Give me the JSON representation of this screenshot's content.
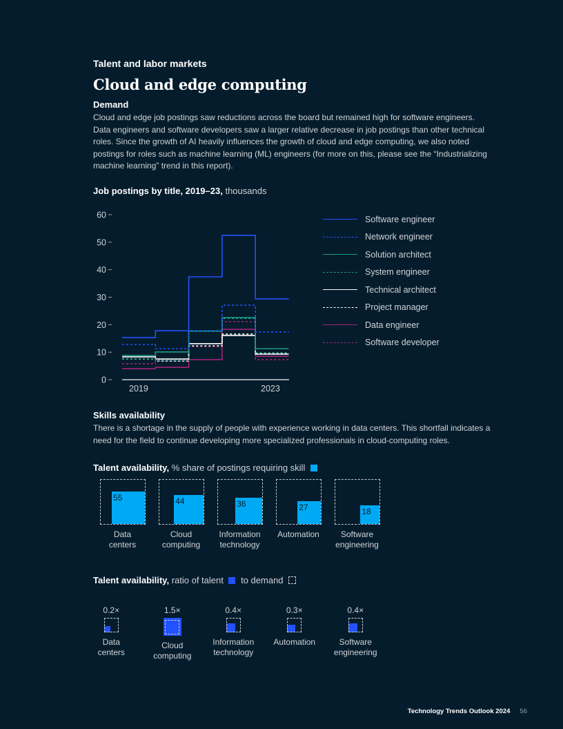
{
  "header": {
    "section": "Talent and labor markets",
    "title": "Cloud and edge computing"
  },
  "demand": {
    "heading": "Demand",
    "body": "Cloud and edge job postings saw reductions across the board but remained high for software engineers. Data engineers and software developers saw a larger relative decrease in job postings than other technical roles. Since the growth of AI heavily influences the growth of cloud and edge computing, we also noted postings for roles such as machine learning (ML) engineers (for more on this, please see the “Industrializing machine learning” trend in this report)."
  },
  "skills": {
    "heading": "Skills availability",
    "body": "There is a shortage in the supply of people with experience working in data centers. This shortfall indicates a need for the field to continue developing more specialized professionals in cloud-computing roles."
  },
  "colors": {
    "background": "#051c2c",
    "share_fill": "#00a9f4",
    "talent_fill": "#2251ff"
  },
  "chart_data": [
    {
      "type": "line",
      "step": true,
      "title": "Job postings by title, 2019–23,",
      "title_unit": "thousands",
      "xlabel": "",
      "ylabel": "",
      "x": [
        2019,
        2020,
        2021,
        2022,
        2023
      ],
      "x_tick_labels": [
        "2019",
        "2023"
      ],
      "ylim": [
        0,
        60
      ],
      "y_ticks": [
        0,
        10,
        20,
        30,
        40,
        50,
        60
      ],
      "grid": false,
      "legend_position": "right",
      "series": [
        {
          "name": "Software engineer",
          "color": "#2251ff",
          "dash": "solid",
          "values": [
            15.3,
            17.8,
            37.4,
            52.5,
            29.4
          ]
        },
        {
          "name": "Network engineer",
          "color": "#2251ff",
          "dash": "dotted",
          "values": [
            12.8,
            11.3,
            17.8,
            27.1,
            17.3
          ]
        },
        {
          "name": "Solution architect",
          "color": "#1f9a8a",
          "dash": "solid",
          "values": [
            8.8,
            10.1,
            17.7,
            22.6,
            11.3
          ]
        },
        {
          "name": "System engineer",
          "color": "#1f9a8a",
          "dash": "dotted",
          "values": [
            7.5,
            7.0,
            17.6,
            22.3,
            9.8
          ]
        },
        {
          "name": "Technical architect",
          "color": "#ffffff",
          "dash": "solid",
          "values": [
            8.3,
            7.5,
            13.1,
            16.1,
            9.3
          ]
        },
        {
          "name": "Project manager",
          "color": "#ffffff",
          "dash": "dotted",
          "values": [
            7.5,
            6.8,
            12.3,
            16.6,
            9.5
          ]
        },
        {
          "name": "Data engineer",
          "color": "#a4237a",
          "dash": "solid",
          "values": [
            4.0,
            4.5,
            7.3,
            18.3,
            8.5
          ]
        },
        {
          "name": "Software developer",
          "color": "#a4237a",
          "dash": "dotted",
          "values": [
            5.8,
            6.8,
            12.0,
            21.1,
            7.3
          ]
        }
      ]
    },
    {
      "type": "bar",
      "title": "Talent availability,",
      "title_unit": "% share of postings requiring skill",
      "categories": [
        "Data centers",
        "Cloud computing",
        "Information technology",
        "Automation",
        "Software engineering"
      ],
      "category_lines": [
        [
          "Data",
          "centers"
        ],
        [
          "Cloud",
          "computing"
        ],
        [
          "Information",
          "technology"
        ],
        [
          "Automation"
        ],
        [
          "Software",
          "engineering"
        ]
      ],
      "values": [
        55,
        44,
        36,
        27,
        18
      ],
      "ylim": [
        0,
        100
      ]
    },
    {
      "type": "bar",
      "title": "Talent availability,",
      "title_unit_a": "ratio of talent",
      "title_unit_b": "to demand",
      "categories": [
        "Data centers",
        "Cloud computing",
        "Information technology",
        "Automation",
        "Software engineering"
      ],
      "category_lines": [
        [
          "Data",
          "centers"
        ],
        [
          "Cloud",
          "computing"
        ],
        [
          "Information",
          "technology"
        ],
        [
          "Automation"
        ],
        [
          "Software",
          "engineering"
        ]
      ],
      "values": [
        0.2,
        1.5,
        0.4,
        0.3,
        0.4
      ],
      "value_labels": [
        "0.2×",
        "1.5×",
        "0.4×",
        "0.3×",
        "0.4×"
      ]
    }
  ],
  "footer": {
    "publication": "Technology Trends Outlook 2024",
    "page": "56"
  }
}
